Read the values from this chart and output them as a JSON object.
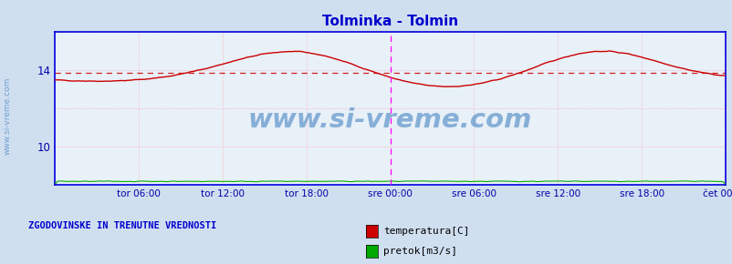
{
  "title": "Tolminka - Tolmin",
  "title_color": "#0000cc",
  "bg_color": "#d0dff0",
  "plot_bg_color": "#e8f0f8",
  "border_color": "#0000dd",
  "grid_color": "#ffaaaa",
  "xlabel_color": "#0000aa",
  "ylim": [
    8,
    16
  ],
  "xlim": [
    0,
    576
  ],
  "yticks": [
    10,
    14
  ],
  "x_tick_positions": [
    0,
    72,
    144,
    216,
    288,
    360,
    432,
    504,
    576
  ],
  "x_tick_labels": [
    "",
    "tor 06:00",
    "tor 12:00",
    "tor 18:00",
    "sre 00:00",
    "sre 06:00",
    "sre 12:00",
    "sre 18:00",
    "čet 00:00"
  ],
  "watermark": "www.si-vreme.com",
  "watermark_color": "#6699cc",
  "legend_label1": "temperatura[C]",
  "legend_label2": "pretok[m3/s]",
  "legend_color1": "#cc0000",
  "legend_color2": "#00aa00",
  "footer_text": "ZGODOVINSKE IN TRENUTNE VREDNOSTI",
  "footer_color": "#0000cc",
  "avg_line_value": 13.85,
  "avg_line_color": "#cc0000",
  "temp_line_color": "#cc0000",
  "flow_line_color": "#00aa00",
  "flow_value": 8.18,
  "midpoint_vline": 288,
  "end_vline": 576,
  "vline_color": "#ff00ff",
  "n_points": 577
}
